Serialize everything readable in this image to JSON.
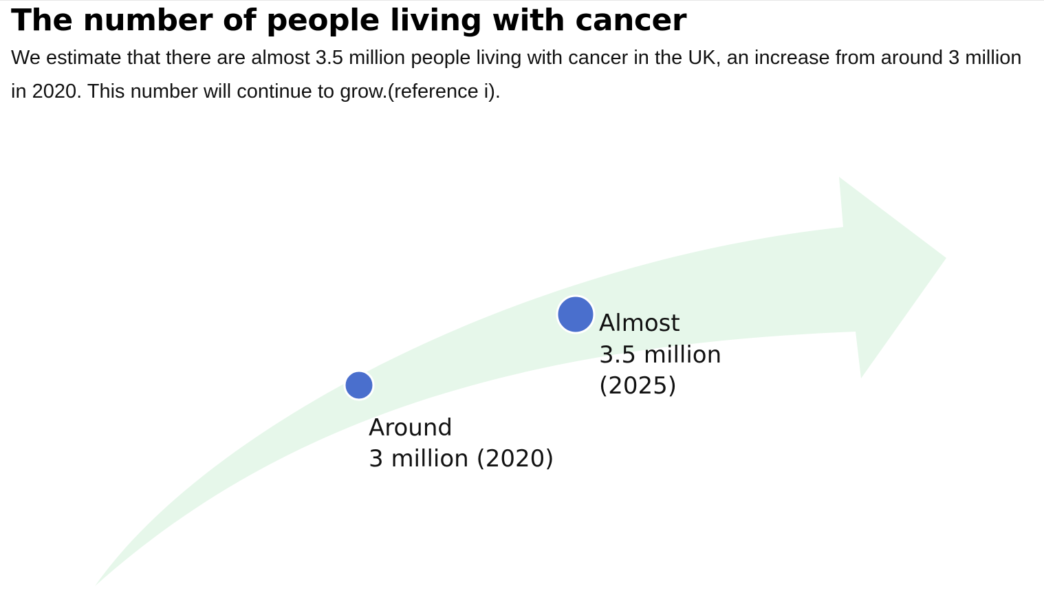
{
  "header": {
    "title": "The number of people living with cancer",
    "intro": "We estimate that there are almost 3.5 million people living with cancer in the UK, an increase from around 3 million in 2020. This number will continue to grow.(reference i)."
  },
  "diagram": {
    "arrow_color": "#e6f7ea",
    "dot_color": "#4a6fcd",
    "nodes": [
      {
        "label_line1": "Around",
        "label_line2": "3 million (2020)"
      },
      {
        "label_line1": "Almost",
        "label_line2": "3.5 million",
        "label_line3": "(2025)"
      }
    ]
  }
}
